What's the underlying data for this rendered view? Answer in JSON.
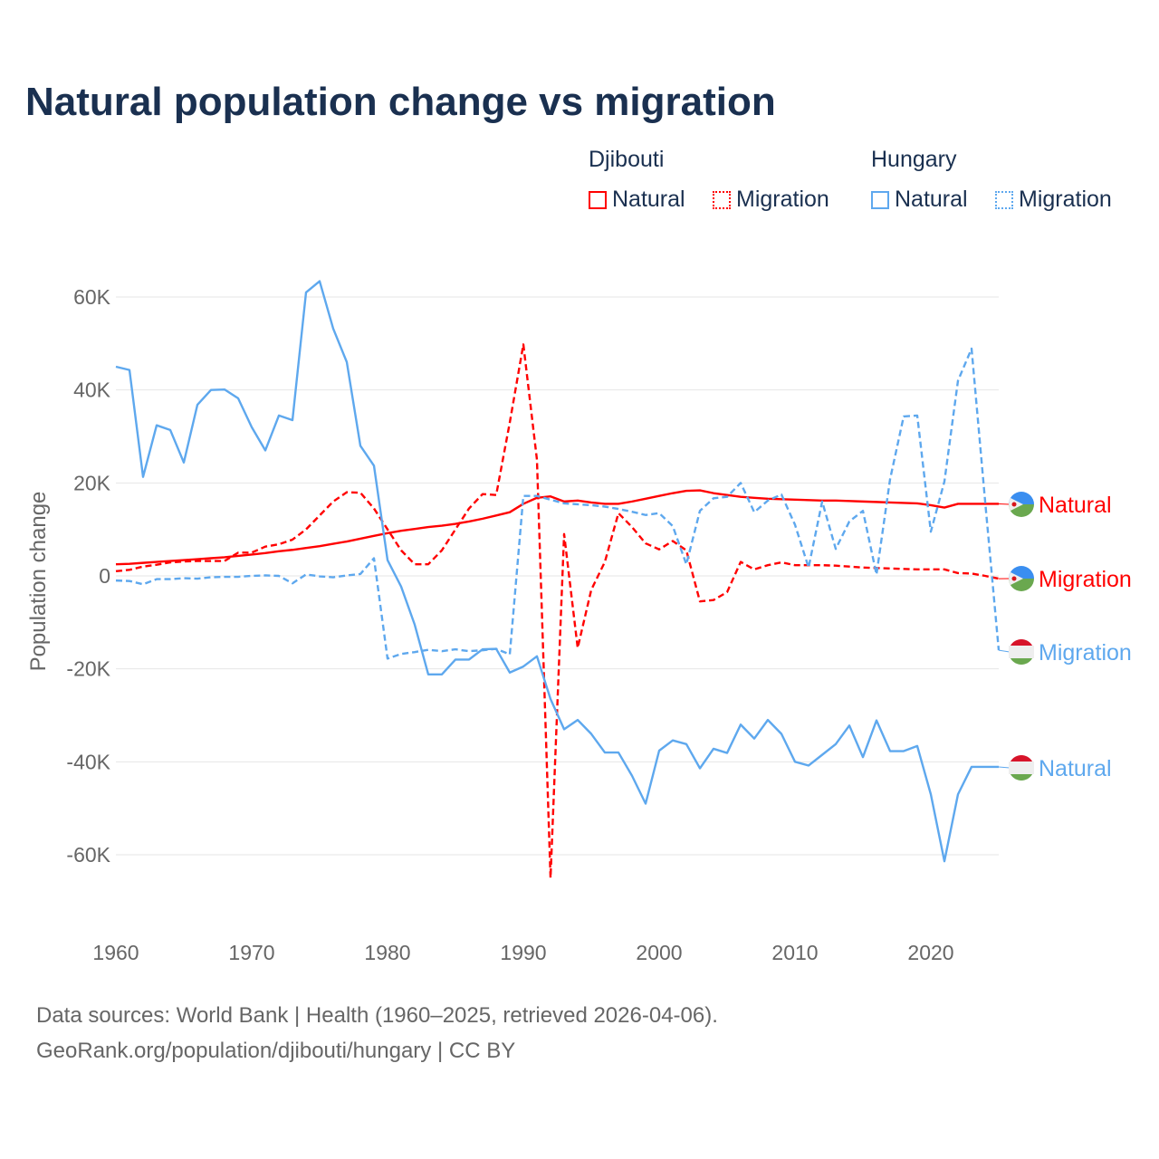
{
  "chart_data": {
    "type": "line",
    "title": "Natural population change vs migration",
    "ylabel": "Population change",
    "xlabel": "",
    "xlim": [
      1960,
      2025
    ],
    "ylim": [
      -70000,
      70000
    ],
    "x_ticks": [
      1960,
      1970,
      1980,
      1990,
      2000,
      2010,
      2020
    ],
    "y_ticks": [
      60000,
      40000,
      20000,
      0,
      -20000,
      -40000,
      -60000
    ],
    "y_tick_labels": [
      "60K",
      "40K",
      "20K",
      "0",
      "-20K",
      "-40K",
      "-60K"
    ],
    "grid": true,
    "legend_placement": "top-right",
    "legend_groups": [
      {
        "country": "Djibouti",
        "items": [
          "Natural",
          "Migration"
        ]
      },
      {
        "country": "Hungary",
        "items": [
          "Natural",
          "Migration"
        ]
      }
    ],
    "x_start": 1960,
    "series": [
      {
        "name": "Djibouti Natural",
        "label": "Natural",
        "country": "Djibouti",
        "color": "#ff0000",
        "dashed": false,
        "values": [
          2.5,
          2.6,
          2.8,
          3,
          3.2,
          3.4,
          3.6,
          3.8,
          4,
          4.3,
          4.6,
          4.9,
          5.3,
          5.6,
          6,
          6.4,
          6.9,
          7.4,
          8,
          8.6,
          9.2,
          9.7,
          10.1,
          10.5,
          10.8,
          11.2,
          11.7,
          12.3,
          13,
          13.7,
          15.5,
          16.8,
          17.1,
          16,
          16.2,
          15.8,
          15.5,
          15.5,
          16,
          16.6,
          17.2,
          17.8,
          18.3,
          18.4,
          17.8,
          17.4,
          17,
          16.8,
          16.6,
          16.5,
          16.4,
          16.3,
          16.2,
          16.2,
          16.1,
          16,
          15.9,
          15.8,
          15.7,
          15.6,
          15.2,
          14.7,
          15.5,
          15.5,
          15.5,
          15.5
        ]
      },
      {
        "name": "Djibouti Migration",
        "label": "Migration",
        "country": "Djibouti",
        "color": "#ff0000",
        "dashed": true,
        "values": [
          1,
          1.3,
          2,
          2.4,
          2.9,
          3.1,
          3.2,
          3.2,
          3.2,
          5,
          5,
          6.3,
          6.8,
          7.8,
          10,
          13,
          16,
          18,
          17.9,
          14.5,
          10,
          5.5,
          2.5,
          2.5,
          5.5,
          10,
          14.5,
          17.6,
          17.4,
          33,
          49.8,
          25,
          -65,
          9,
          -15.5,
          -3,
          3,
          13.5,
          10.5,
          7,
          5.7,
          7.5,
          5.5,
          -5.5,
          -5.2,
          -3.5,
          3,
          1.4,
          2.3,
          2.9,
          2.3,
          2.3,
          2.3,
          2.2,
          2,
          1.8,
          1.7,
          1.6,
          1.5,
          1.4,
          1.4,
          1.4,
          0.6,
          0.5,
          0,
          -0.6
        ]
      },
      {
        "name": "Hungary Migration",
        "label": "Migration",
        "country": "Hungary",
        "color": "#5ea8ee",
        "dashed": true,
        "values": [
          -1,
          -1.1,
          -1.8,
          -0.7,
          -0.7,
          -0.5,
          -0.6,
          -0.3,
          -0.2,
          -0.2,
          0,
          0.1,
          0,
          -1.6,
          0.3,
          -0.1,
          -0.3,
          0.1,
          0.4,
          3.8,
          -17.8,
          -16.8,
          -16.4,
          -15.9,
          -16.2,
          -15.8,
          -16.2,
          -16,
          -15.7,
          -16.9,
          17.2,
          17.2,
          16.4,
          15.6,
          15.4,
          15.2,
          14.9,
          14.4,
          13.8,
          13.1,
          13.5,
          10.7,
          2.5,
          14,
          16.7,
          17,
          20,
          13.7,
          16.2,
          17.5,
          11,
          1.8,
          16,
          5.8,
          11.7,
          14,
          0.3,
          20.8,
          34.3,
          34.5,
          9.5,
          20.3,
          42,
          48.9,
          16,
          -16
        ]
      },
      {
        "name": "Hungary Natural",
        "label": "Natural",
        "country": "Hungary",
        "color": "#5ea8ee",
        "dashed": false,
        "values": [
          45,
          44.3,
          21.3,
          32.4,
          31.4,
          24.4,
          36.8,
          40,
          40.1,
          38.2,
          32,
          27,
          34.5,
          33.5,
          61,
          63.4,
          53.2,
          46,
          28,
          23.7,
          3.4,
          -2.3,
          -10.5,
          -21.2,
          -21.2,
          -18,
          -18,
          -15.8,
          -15.7,
          -20.8,
          -19.5,
          -17.3,
          -26.5,
          -33,
          -31,
          -34,
          -38,
          -38,
          -43,
          -49,
          -37.6,
          -35.4,
          -36.2,
          -41.4,
          -37.2,
          -38.1,
          -32,
          -35,
          -31,
          -34,
          -40,
          -40.8,
          -38.5,
          -36.2,
          -32.2,
          -39,
          -31.1,
          -37.7,
          -37.7,
          -36.6,
          -47,
          -61.4,
          -47,
          -41.1,
          -41.1,
          -41.1
        ]
      }
    ],
    "value_unit": "thousands"
  },
  "source": {
    "line1": "Data sources: World Bank | Health (1960–2025, retrieved 2026-04-06).",
    "line2": "GeoRank.org/population/djibouti/hungary | CC BY"
  }
}
